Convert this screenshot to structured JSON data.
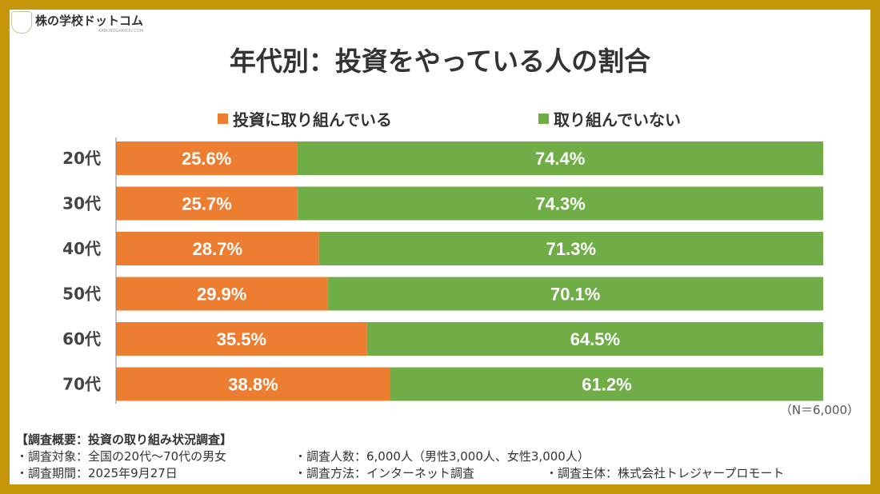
{
  "logo": {
    "name": "株の学校ドットコム",
    "sub": "KABUNOGAKKOU.COM",
    "mark": "KG"
  },
  "colors": {
    "invest": "#ED7D31",
    "not_invest": "#70AD47",
    "border": "#C5960A"
  },
  "chart_data": {
    "type": "bar",
    "orientation": "horizontal",
    "stacked": "100%",
    "title": "年代別：投資をやっている人の割合",
    "categories": [
      "20代",
      "30代",
      "40代",
      "50代",
      "60代",
      "70代"
    ],
    "series": [
      {
        "name": "投資に取り組んでいる",
        "values": [
          25.6,
          25.7,
          28.7,
          29.9,
          35.5,
          38.8
        ]
      },
      {
        "name": "取り組んでいない",
        "values": [
          74.4,
          74.3,
          71.3,
          70.1,
          64.5,
          61.2
        ]
      }
    ],
    "xlim": [
      0,
      100
    ],
    "legend": "top",
    "grid": false
  },
  "sample": "（N＝6,000）",
  "footer": {
    "heading": "【調査概要：投資の取り組み状況調査】",
    "target": "・調査対象：全国の20代～70代の男女",
    "count": "・調査人数：6,000人（男性3,000人、女性3,000人）",
    "period": "・調査期間：2025年9月27日",
    "method": "・調査方法：インターネット調査",
    "sponsor": "・調査主体：株式会社トレジャープロモート"
  }
}
